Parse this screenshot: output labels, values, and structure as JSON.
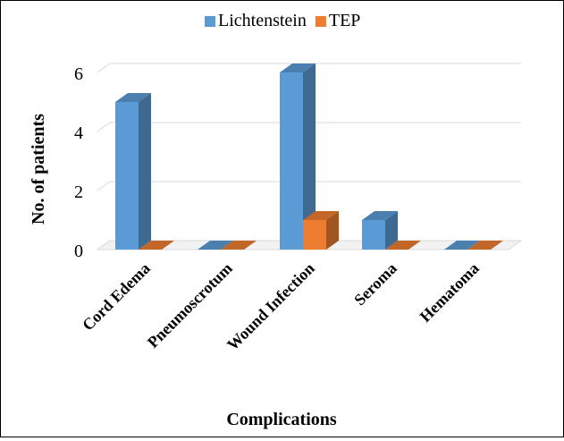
{
  "chart_data": {
    "type": "bar",
    "style": "3d-clustered-column",
    "categories": [
      "Cord Edema",
      "Pneumoscrotum",
      "Wound Infection",
      "Seroma",
      "Hematoma"
    ],
    "series": [
      {
        "name": "Lichtenstein",
        "values": [
          5,
          0,
          6,
          1,
          0
        ],
        "color": "#5B9BD5"
      },
      {
        "name": "TEP",
        "values": [
          0,
          0,
          1,
          0,
          0
        ],
        "color": "#ED7D31"
      }
    ],
    "xlabel": "Complications",
    "ylabel": "No. of patients",
    "ylim": [
      0,
      6
    ],
    "yticks": [
      0,
      2,
      4,
      6
    ],
    "grid": true,
    "legend_position": "top"
  }
}
